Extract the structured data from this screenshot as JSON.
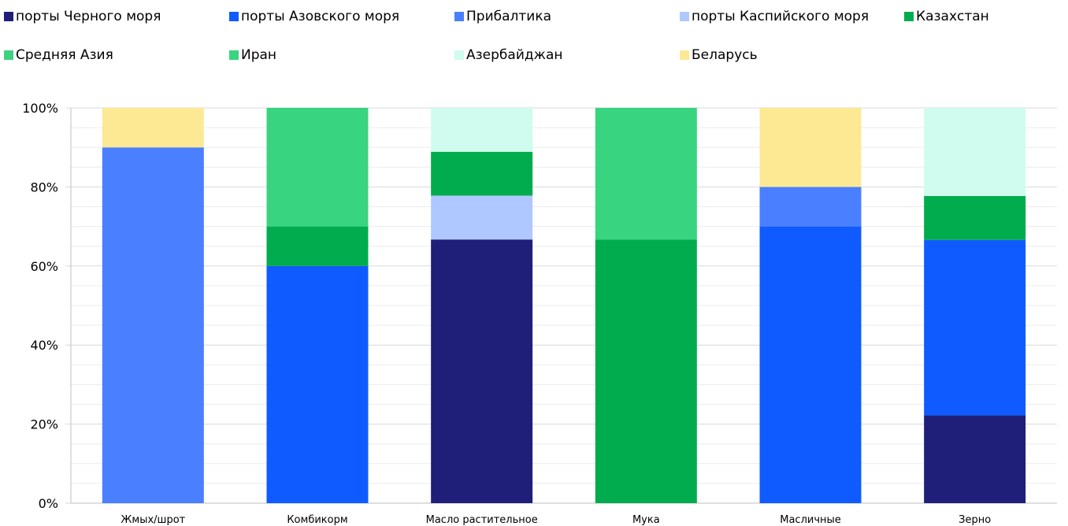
{
  "chart_data": {
    "type": "bar",
    "stacked": true,
    "percent": true,
    "title": "",
    "xlabel": "",
    "ylabel": "",
    "ylim": [
      0,
      100
    ],
    "yticks": [
      "0%",
      "20%",
      "40%",
      "60%",
      "80%",
      "100%"
    ],
    "grid": true,
    "legend_position": "top",
    "categories": [
      "Жмых/шрот",
      "Комбикорм",
      "Масло растительное",
      "Мука",
      "Масличные",
      "Зерно"
    ],
    "series": [
      {
        "name": "порты Черного моря",
        "color": "#1f1f7a",
        "values": [
          0,
          0,
          66.7,
          0,
          0,
          22.2
        ]
      },
      {
        "name": "порты Азовского моря",
        "color": "#0f5bff",
        "values": [
          0,
          60,
          0,
          0,
          70,
          44.4
        ]
      },
      {
        "name": "Прибалтика",
        "color": "#4a7fff",
        "values": [
          90,
          0,
          0,
          0,
          10,
          0
        ]
      },
      {
        "name": "порты Каспийского моря",
        "color": "#afc8ff",
        "values": [
          0,
          0,
          11.1,
          0,
          0,
          0
        ]
      },
      {
        "name": "Казахстан",
        "color": "#00ac4d",
        "values": [
          0,
          10,
          11.1,
          66.7,
          0,
          11.1
        ]
      },
      {
        "name": "Средняя Азия",
        "color": "#3cd27f",
        "values": [
          0,
          0,
          0,
          0,
          0,
          0
        ]
      },
      {
        "name": "Иран",
        "color": "#38d47f",
        "values": [
          0,
          30,
          0,
          33.3,
          0,
          0
        ]
      },
      {
        "name": "Азербайджан",
        "color": "#d0fcef",
        "values": [
          0,
          0,
          11.1,
          0,
          0,
          22.3
        ]
      },
      {
        "name": "Беларусь",
        "color": "#fde994",
        "values": [
          10,
          0,
          0,
          0,
          20,
          0
        ]
      }
    ]
  }
}
